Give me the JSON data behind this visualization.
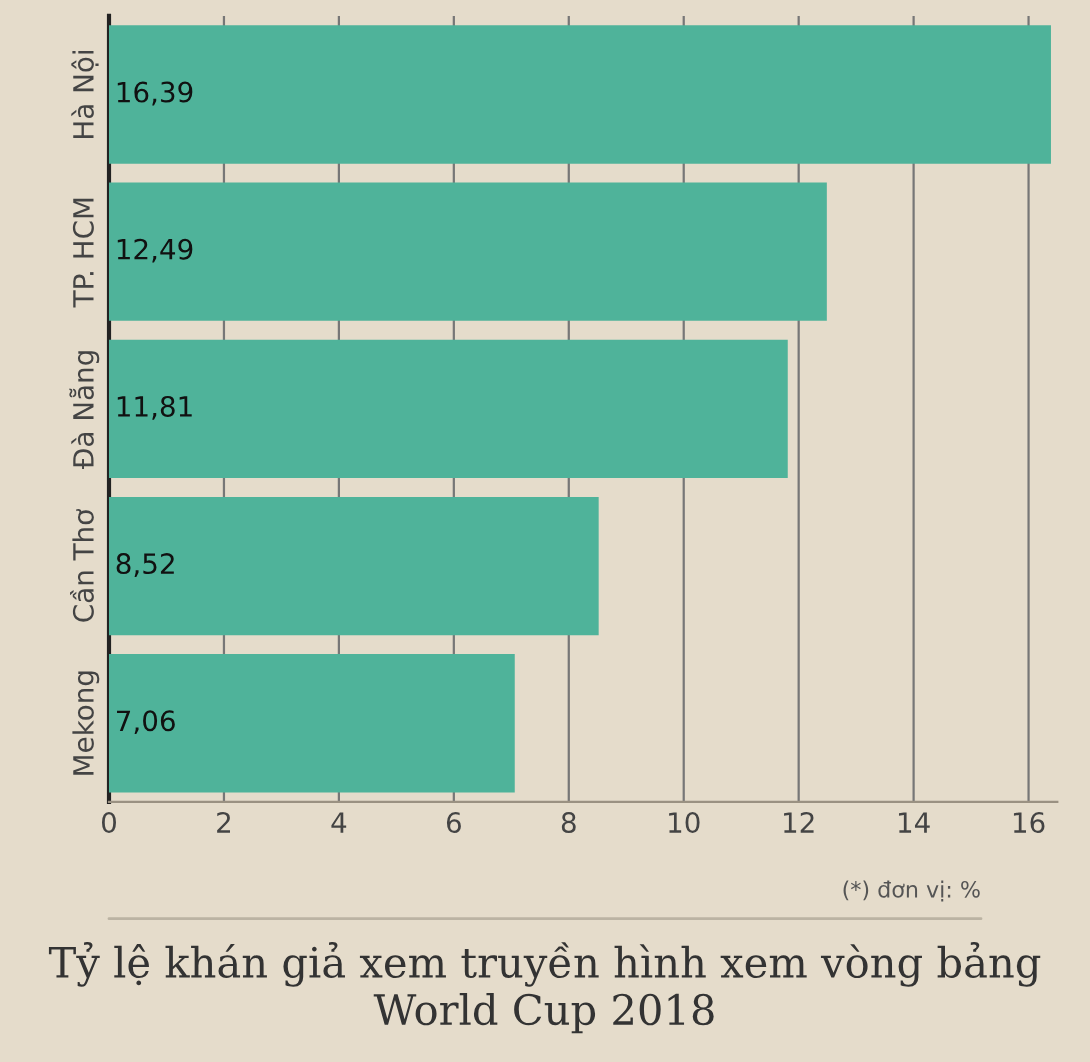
{
  "chart_data": {
    "type": "bar",
    "orientation": "horizontal",
    "title": "Tỷ lệ khán giả xem truyền hình xem vòng bảng World Cup 2018",
    "categories": [
      "Hà Nội",
      "TP. HCM",
      "Đà Nẵng",
      "Cần Thơ",
      "Mekong"
    ],
    "values": [
      16.39,
      12.49,
      11.81,
      8.52,
      7.06
    ],
    "value_labels": [
      "16,39",
      "12,49",
      "11,81",
      "8,52",
      "7,06"
    ],
    "color": "#4fb39a",
    "xlim": [
      0,
      16.5
    ],
    "xticks": [
      0,
      2,
      4,
      6,
      8,
      10,
      12,
      14,
      16
    ],
    "grid": "x",
    "annotations": [
      "(*) đơn vị: %"
    ]
  }
}
